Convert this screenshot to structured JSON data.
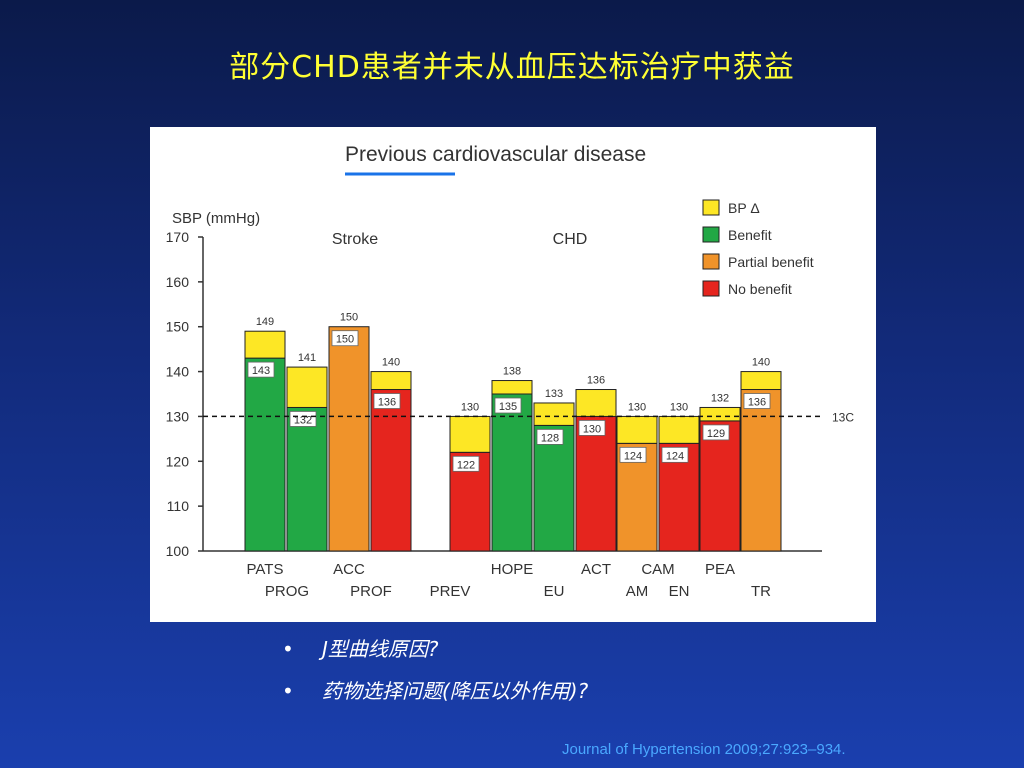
{
  "slide": {
    "title": "部分CHD患者并未从血压达标治疗中获益",
    "bullets": [
      "J型曲线原因?",
      "药物选择问题(降压以外作用)?"
    ],
    "bullet_marker": "•",
    "citation": "Journal of Hypertension 2009;27:923–934."
  },
  "chart_data": {
    "type": "bar",
    "title": "Previous cardiovascular disease",
    "ylabel": "SBP (mmHg)",
    "ylim": [
      100,
      170
    ],
    "yticks": [
      100,
      110,
      120,
      130,
      140,
      150,
      160,
      170
    ],
    "reference_line": {
      "value": 130,
      "label": "13C"
    },
    "group_labels": [
      "Stroke",
      "CHD"
    ],
    "legend": [
      {
        "name": "BP Δ",
        "color": "#fde725"
      },
      {
        "name": "Benefit",
        "color": "#22a845"
      },
      {
        "name": "Partial benefit",
        "color": "#f0932a"
      },
      {
        "name": "No benefit",
        "color": "#e5251e"
      }
    ],
    "bars": [
      {
        "label": "PATS",
        "label_row": 1,
        "group": 0,
        "top": 149,
        "bottom_value": 143,
        "outcome": "Benefit"
      },
      {
        "label": "PROG",
        "label_row": 2,
        "group": 0,
        "top": 141,
        "bottom_value": 132,
        "outcome": "Benefit"
      },
      {
        "label": "ACC",
        "label_row": 1,
        "group": 0,
        "top": 150,
        "bottom_value": 150,
        "outcome": "Partial benefit"
      },
      {
        "label": "PROF",
        "label_row": 2,
        "group": 0,
        "top": 140,
        "bottom_value": 136,
        "outcome": "No benefit"
      },
      {
        "label": "PREV",
        "label_row": 2,
        "group": 1,
        "top": 130,
        "bottom_value": 122,
        "outcome": "No benefit"
      },
      {
        "label": "HOPE",
        "label_row": 1,
        "group": 1,
        "top": 138,
        "bottom_value": 135,
        "outcome": "Benefit"
      },
      {
        "label": "EU",
        "label_row": 2,
        "group": 1,
        "top": 133,
        "bottom_value": 128,
        "outcome": "Benefit"
      },
      {
        "label": "ACT",
        "label_row": 1,
        "group": 1,
        "top": 136,
        "bottom_value": 130,
        "outcome": "No benefit"
      },
      {
        "label": "AM",
        "label_row": 2,
        "group": 1,
        "top": 130,
        "bottom_value": 124,
        "outcome": "Partial benefit"
      },
      {
        "label": "EN",
        "label_row": 2,
        "group": 1,
        "top": 130,
        "bottom_value": 124,
        "outcome": "No benefit"
      },
      {
        "label": "PEA",
        "label_row": 1,
        "group": 1,
        "top": 132,
        "bottom_value": 129,
        "outcome": "No benefit"
      },
      {
        "label": "TR",
        "label_row": 2,
        "group": 1,
        "top": 140,
        "bottom_value": 136,
        "outcome": "Partial benefit"
      }
    ],
    "extra_category_labels": [
      {
        "text": "CAM",
        "between": [
          8,
          9
        ]
      }
    ]
  }
}
